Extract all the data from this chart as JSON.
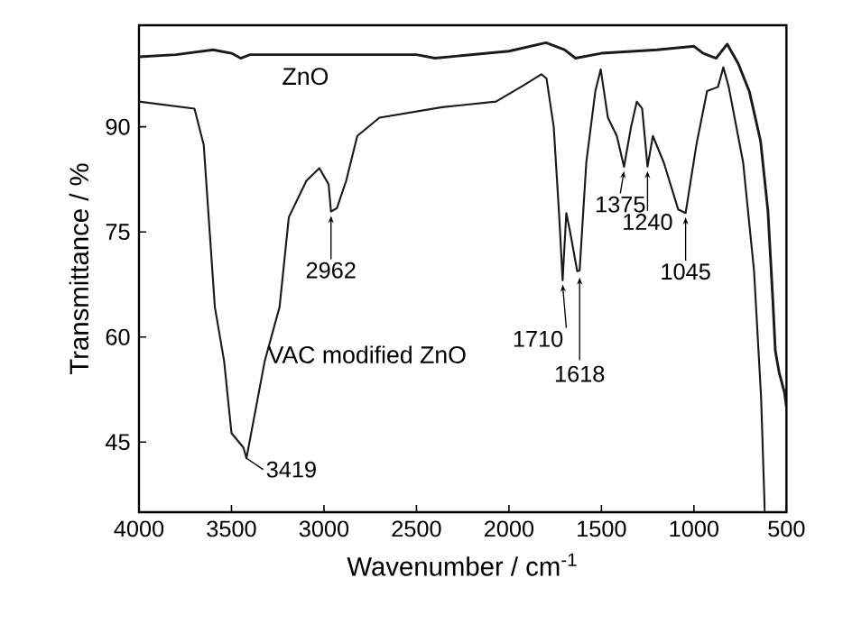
{
  "chart_data": {
    "type": "line",
    "xlabel": "Wavenumber / cm$^{-1}$",
    "ylabel": "Transmittance / %",
    "xlim": [
      4000,
      500
    ],
    "ylim": [
      35,
      104.5
    ],
    "xticks": [
      4000,
      3500,
      3000,
      2500,
      2000,
      1500,
      1000,
      500
    ],
    "yticks": [
      45,
      60,
      75,
      90
    ],
    "grid": false,
    "legend": false,
    "marker": "none",
    "line_style": "solid",
    "series": [
      {
        "name": "ZnO",
        "color": "#1a1a1a",
        "x": [
          4000,
          3800,
          3600,
          3500,
          3450,
          3400,
          3000,
          2500,
          2400,
          2000,
          1800,
          1700,
          1640,
          1500,
          1200,
          1000,
          950,
          880,
          820,
          760,
          700,
          640,
          600,
          575,
          560,
          540,
          510,
          500
        ],
        "values": [
          100,
          100.3,
          101,
          100.5,
          99.8,
          100.3,
          100.3,
          100.3,
          99.8,
          100.8,
          102,
          101,
          99.8,
          100.5,
          101,
          101.5,
          100.5,
          99.8,
          101.8,
          99,
          95,
          88,
          78,
          66,
          58,
          55,
          52,
          50
        ]
      },
      {
        "name": "VAC modified ZnO",
        "color": "#1a1a1a",
        "x": [
          4000,
          3700,
          3650,
          3590,
          3540,
          3500,
          3435,
          3419,
          3320,
          3240,
          3190,
          3095,
          3025,
          2975,
          2962,
          2930,
          2880,
          2820,
          2700,
          2362,
          2070,
          1923,
          1825,
          1797,
          1758,
          1728,
          1710,
          1690,
          1670,
          1631,
          1618,
          1582,
          1533,
          1504,
          1465,
          1417,
          1378,
          1340,
          1309,
          1280,
          1251,
          1222,
          1163,
          1085,
          1045,
          987,
          929,
          870,
          841,
          812,
          734,
          675,
          637,
          617
        ],
        "values": [
          93.6,
          92.6,
          87.4,
          64.3,
          56.6,
          46.3,
          44.2,
          42.7,
          56.6,
          64.3,
          77.1,
          82.3,
          84.1,
          81.8,
          77.9,
          78.4,
          82.3,
          88.7,
          91.3,
          92.8,
          93.6,
          95.9,
          97.5,
          96.9,
          90,
          77.1,
          68.1,
          77.7,
          75.1,
          69.4,
          69.5,
          84.9,
          95.1,
          98.2,
          91.3,
          88.7,
          84.3,
          90,
          93.6,
          92.6,
          84.3,
          88.7,
          84.9,
          78.2,
          77.7,
          87.4,
          95.1,
          95.7,
          98.5,
          95.7,
          84.9,
          69.4,
          51.4,
          35
        ]
      }
    ],
    "annotations": [
      {
        "text": "3419",
        "x": 3419,
        "y": 42.7
      },
      {
        "text": "2962",
        "x": 2962,
        "y": 77.9
      },
      {
        "text": "1710",
        "x": 1710,
        "y": 68.1
      },
      {
        "text": "1618",
        "x": 1618,
        "y": 69.5
      },
      {
        "text": "1375",
        "x": 1378,
        "y": 84.3
      },
      {
        "text": "1240",
        "x": 1251,
        "y": 84.3
      },
      {
        "text": "1045",
        "x": 1045,
        "y": 77.7
      }
    ]
  }
}
